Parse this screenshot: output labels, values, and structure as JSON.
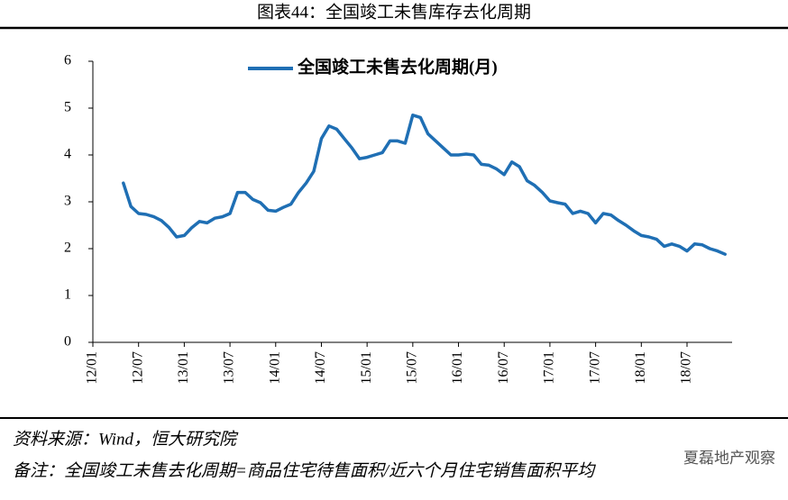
{
  "chart_data": {
    "type": "line",
    "title": "图表44：全国竣工未售库存去化周期",
    "source": "资料来源：Wind，恒大研究院",
    "note": "备注：全国竣工未售去化周期=商品住宅待售面积/近六个月住宅销售面积平均",
    "categories": [
      "12/01",
      null,
      null,
      null,
      null,
      null,
      "12/07",
      null,
      null,
      null,
      null,
      null,
      "13/01",
      null,
      null,
      null,
      null,
      null,
      "13/07",
      null,
      null,
      null,
      null,
      null,
      "14/01",
      null,
      null,
      null,
      null,
      null,
      "14/07",
      null,
      null,
      null,
      null,
      null,
      "15/01",
      null,
      null,
      null,
      null,
      null,
      "15/07",
      null,
      null,
      null,
      null,
      null,
      "16/01",
      null,
      null,
      null,
      null,
      null,
      "16/07",
      null,
      null,
      null,
      null,
      null,
      "17/01",
      null,
      null,
      null,
      null,
      null,
      "17/07",
      null,
      null,
      null,
      null,
      null,
      "18/01",
      null,
      null,
      null,
      null,
      null,
      "18/07",
      null,
      null,
      null,
      null,
      null
    ],
    "series": [
      {
        "name": "全国竣工未售去化周期(月)",
        "color": "#1f6fb4",
        "values": [
          null,
          null,
          null,
          null,
          3.4,
          2.9,
          2.75,
          2.73,
          2.68,
          2.6,
          2.45,
          2.25,
          2.28,
          2.45,
          2.58,
          2.55,
          2.65,
          2.68,
          2.75,
          3.2,
          3.2,
          3.05,
          2.98,
          2.82,
          2.8,
          2.88,
          2.95,
          3.2,
          3.4,
          3.65,
          4.35,
          4.62,
          4.55,
          4.35,
          4.15,
          3.92,
          3.95,
          4.0,
          4.05,
          4.3,
          4.3,
          4.25,
          4.85,
          4.8,
          4.45,
          4.3,
          4.15,
          4.0,
          4.0,
          4.02,
          4.0,
          3.8,
          3.78,
          3.7,
          3.58,
          3.85,
          3.75,
          3.45,
          3.35,
          3.2,
          3.02,
          2.98,
          2.95,
          2.75,
          2.8,
          2.75,
          2.55,
          2.75,
          2.72,
          2.6,
          2.5,
          2.38,
          2.28,
          2.25,
          2.2,
          2.05,
          2.1,
          2.05,
          1.95,
          2.1,
          2.08,
          2.0,
          1.95,
          1.88
        ]
      }
    ],
    "ylim": [
      0,
      6
    ],
    "yticks": [
      0,
      1,
      2,
      3,
      4,
      5,
      6
    ],
    "grid": false,
    "legend": "top"
  },
  "watermark": "夏磊地产观察"
}
